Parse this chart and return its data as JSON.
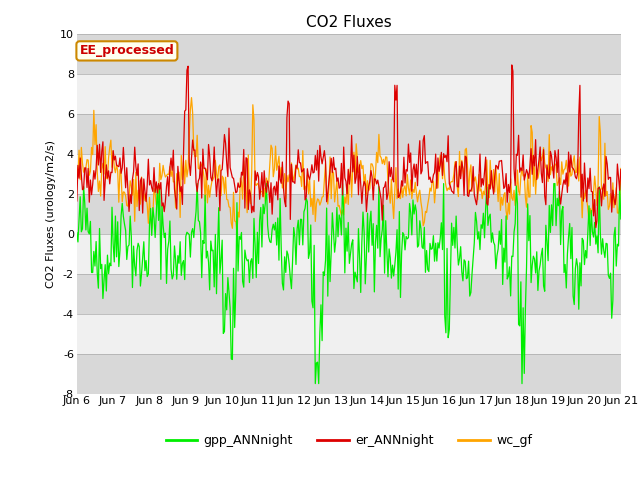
{
  "title": "CO2 Fluxes",
  "ylabel": "CO2 Fluxes (urology/m2/s)",
  "ylim": [
    -8,
    10
  ],
  "yticks": [
    -8,
    -6,
    -4,
    -2,
    0,
    2,
    4,
    6,
    8,
    10
  ],
  "xtick_labels": [
    "Jun 6",
    "Jun 7",
    "Jun 8",
    "Jun 9",
    "Jun 10",
    "Jun 11",
    "Jun 12",
    "Jun 13",
    "Jun 14",
    "Jun 15",
    "Jun 16",
    "Jun 17",
    "Jun 18",
    "Jun 19",
    "Jun 20",
    "Jun 21"
  ],
  "n_points": 480,
  "gpp_color": "#00ee00",
  "er_color": "#dd0000",
  "wc_color": "#ffa500",
  "bg_color": "#d8d8d8",
  "white_band_color": "#f0f0f0",
  "gray_band_color": "#d8d8d8",
  "legend_labels": [
    "gpp_ANNnight",
    "er_ANNnight",
    "wc_gf"
  ],
  "ee_label": "EE_processed",
  "ee_label_color": "#cc0000",
  "ee_box_facecolor": "#fffff0",
  "ee_box_edgecolor": "#cc8800",
  "title_fontsize": 11,
  "axis_label_fontsize": 8,
  "tick_fontsize": 8,
  "legend_fontsize": 9,
  "linewidth": 0.9
}
